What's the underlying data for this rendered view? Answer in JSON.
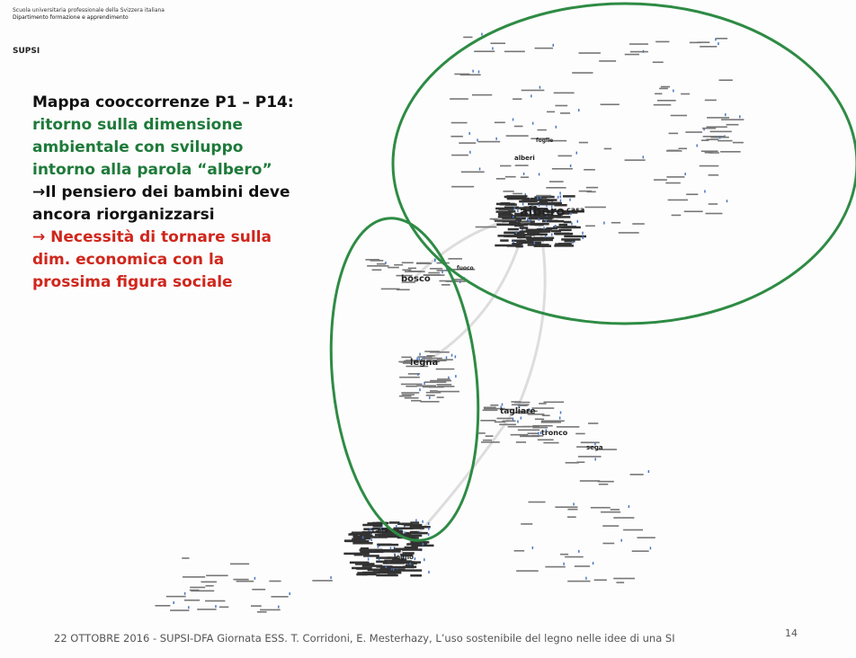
{
  "header": {
    "institution": "Scuola universitaria professionale della Svizzera italiana",
    "department": "Dipartimento formazione e apprendimento",
    "logo": "SUPSI"
  },
  "body": {
    "lines": [
      {
        "text": "Mappa cooccorrenze P1 – P14:",
        "color": "#111111"
      },
      {
        "text": "ritorno sulla dimensione",
        "color": "#1e7a3a"
      },
      {
        "text": "ambientale con sviluppo",
        "color": "#1e7a3a"
      },
      {
        "text": "intorno alla parola “albero”",
        "color": "#1e7a3a"
      },
      {
        "text": "→Il pensiero dei bambini deve",
        "color": "#111111"
      },
      {
        "text": "ancora riorganizzarsi",
        "color": "#111111"
      },
      {
        "text": "→ Necessità di tornare sulla",
        "color": "#d0261c"
      },
      {
        "text": "dim. economica con la",
        "color": "#d0261c"
      },
      {
        "text": "prossima figura sociale",
        "color": "#d0261c"
      }
    ]
  },
  "map": {
    "nodes": [
      "albero",
      "casa",
      "bosco",
      "legna",
      "tagliare",
      "tronco",
      "sega",
      "legno",
      "alberi",
      "foglie",
      "carta",
      "fuoco"
    ]
  },
  "footer": {
    "text": "22 OTTOBRE 2016 - SUPSI-DFA Giornata ESS. T. Corridoni, E. Mesterhazy, L’uso sostenibile del legno nelle idee di una SI",
    "page": "14"
  }
}
